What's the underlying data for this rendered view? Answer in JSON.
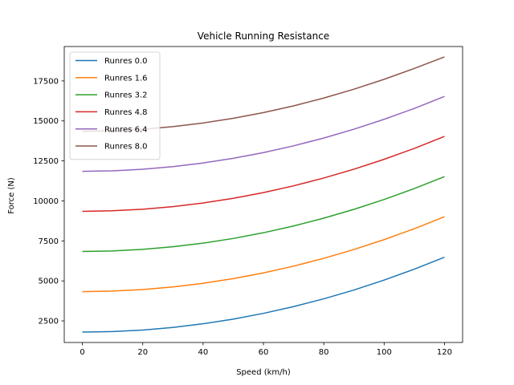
{
  "chart_data": {
    "type": "line",
    "title": "Vehicle Running Resistance",
    "xlabel": "Speed (km/h)",
    "ylabel": "Force (N)",
    "xlim": [
      -6,
      126
    ],
    "ylim": [
      1150,
      19650
    ],
    "xticks": [
      0,
      20,
      40,
      60,
      80,
      100,
      120
    ],
    "yticks": [
      2500,
      5000,
      7500,
      10000,
      12500,
      15000,
      17500
    ],
    "grid": false,
    "legend_position": "top-left",
    "x": [
      0,
      10,
      20,
      30,
      40,
      50,
      60,
      70,
      80,
      90,
      100,
      110,
      120
    ],
    "series": [
      {
        "name": "Runres 0.0",
        "color": "#1f77b4",
        "values": [
          1800,
          1832,
          1930,
          2092,
          2320,
          2612,
          2970,
          3392,
          3880,
          4432,
          5050,
          5732,
          6480
        ]
      },
      {
        "name": "Runres 1.6",
        "color": "#ff7f0e",
        "values": [
          4330,
          4362,
          4460,
          4622,
          4850,
          5142,
          5500,
          5922,
          6410,
          6962,
          7580,
          8262,
          9010
        ]
      },
      {
        "name": "Runres 3.2",
        "color": "#2ca02c",
        "values": [
          6840,
          6872,
          6970,
          7132,
          7360,
          7652,
          8010,
          8432,
          8920,
          9472,
          10090,
          10772,
          11520
        ]
      },
      {
        "name": "Runres 4.8",
        "color": "#d62728",
        "values": [
          9350,
          9382,
          9480,
          9642,
          9870,
          10162,
          10520,
          10942,
          11430,
          11982,
          12600,
          13282,
          14030
        ]
      },
      {
        "name": "Runres 6.4",
        "color": "#9467bd",
        "values": [
          11850,
          11882,
          11980,
          12142,
          12370,
          12662,
          13020,
          13442,
          13930,
          14482,
          15100,
          15782,
          16530
        ]
      },
      {
        "name": "Runres 8.0",
        "color": "#8c564b",
        "values": [
          14350,
          14382,
          14480,
          14642,
          14870,
          15162,
          15520,
          15942,
          16430,
          16982,
          17600,
          18282,
          19000
        ]
      }
    ]
  }
}
